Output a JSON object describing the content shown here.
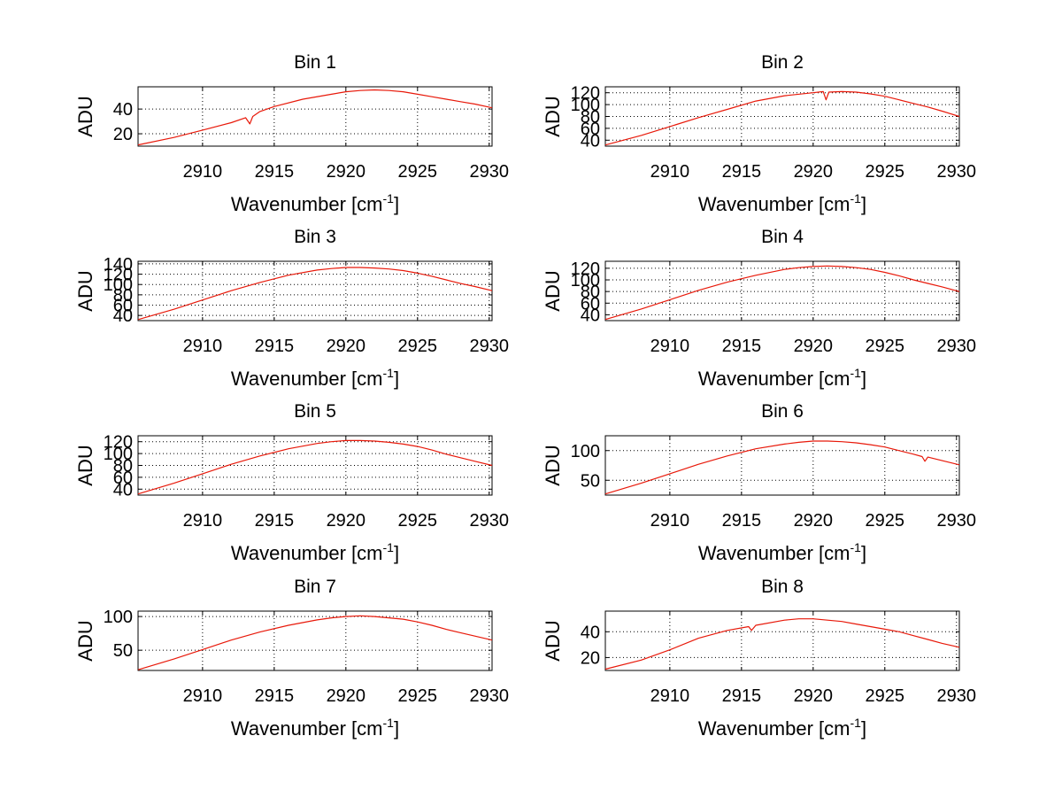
{
  "colors": {
    "line": "#e8190a",
    "grid": "#000000",
    "axes": "#000000",
    "background": "#ffffff"
  },
  "chart_data": [
    {
      "type": "line",
      "title": "Bin 1",
      "xlabel_main": "Wavenumber [cm",
      "xlabel_sup": "-1",
      "xlabel_end": "]",
      "ylabel": "ADU",
      "xlim": [
        2905.5,
        2930.2
      ],
      "ylim": [
        10,
        58
      ],
      "xticks": [
        2910,
        2915,
        2920,
        2925,
        2930
      ],
      "yticks": [
        20,
        40
      ],
      "series": [
        {
          "name": "Bin 1",
          "x": [
            2905.5,
            2908,
            2910,
            2912,
            2913,
            2913.3,
            2913.5,
            2914,
            2915,
            2917,
            2919,
            2920,
            2921,
            2922,
            2923,
            2924,
            2925,
            2926,
            2927,
            2928,
            2929,
            2930.2
          ],
          "y": [
            11,
            17,
            23,
            29,
            33,
            28,
            34,
            38,
            42,
            48,
            52,
            54,
            55,
            55.5,
            55,
            54,
            52,
            50,
            48,
            46,
            44,
            41
          ]
        }
      ]
    },
    {
      "type": "line",
      "title": "Bin 2",
      "xlabel_main": "Wavenumber [cm",
      "xlabel_sup": "-1",
      "xlabel_end": "]",
      "ylabel": "ADU",
      "xlim": [
        2905.5,
        2930.2
      ],
      "ylim": [
        30,
        130
      ],
      "xticks": [
        2910,
        2915,
        2920,
        2925,
        2930
      ],
      "yticks": [
        40,
        60,
        80,
        100,
        120
      ],
      "series": [
        {
          "name": "Bin 2",
          "x": [
            2905.5,
            2908,
            2910,
            2912,
            2914,
            2916,
            2918,
            2920,
            2920.7,
            2920.9,
            2921.1,
            2922,
            2923,
            2924,
            2925,
            2926,
            2927,
            2928,
            2929,
            2930.2
          ],
          "y": [
            32,
            48,
            63,
            78,
            92,
            106,
            115,
            120,
            122,
            108,
            121,
            122,
            121,
            118,
            114,
            108,
            102,
            96,
            89,
            80
          ]
        }
      ]
    },
    {
      "type": "line",
      "title": "Bin 3",
      "xlabel_main": "Wavenumber [cm",
      "xlabel_sup": "-1",
      "xlabel_end": "]",
      "ylabel": "ADU",
      "xlim": [
        2905.5,
        2930.2
      ],
      "ylim": [
        30,
        145
      ],
      "xticks": [
        2910,
        2915,
        2920,
        2925,
        2930
      ],
      "yticks": [
        40,
        60,
        80,
        100,
        120,
        140
      ],
      "series": [
        {
          "name": "Bin 3",
          "x": [
            2905.5,
            2908,
            2910,
            2912,
            2914,
            2916,
            2918,
            2919,
            2920,
            2921,
            2922,
            2923,
            2924,
            2925,
            2926,
            2927,
            2928,
            2929,
            2930.2
          ],
          "y": [
            32,
            52,
            70,
            88,
            104,
            118,
            128,
            131,
            133,
            133,
            132,
            130,
            127,
            122,
            116,
            109,
            102,
            96,
            88
          ]
        }
      ]
    },
    {
      "type": "line",
      "title": "Bin 4",
      "xlabel_main": "Wavenumber [cm",
      "xlabel_sup": "-1",
      "xlabel_end": "]",
      "ylabel": "ADU",
      "xlim": [
        2905.5,
        2930.2
      ],
      "ylim": [
        30,
        132
      ],
      "xticks": [
        2910,
        2915,
        2920,
        2925,
        2930
      ],
      "yticks": [
        40,
        60,
        80,
        100,
        120
      ],
      "series": [
        {
          "name": "Bin 4",
          "x": [
            2905.5,
            2908,
            2910,
            2912,
            2914,
            2916,
            2918,
            2919,
            2920,
            2921,
            2922,
            2923,
            2924,
            2925,
            2926,
            2927,
            2928,
            2929,
            2930.2
          ],
          "y": [
            32,
            50,
            66,
            82,
            96,
            108,
            118,
            121,
            123,
            124,
            123,
            121,
            118,
            113,
            107,
            100,
            94,
            88,
            80
          ]
        }
      ]
    },
    {
      "type": "line",
      "title": "Bin 5",
      "xlabel_main": "Wavenumber [cm",
      "xlabel_sup": "-1",
      "xlabel_end": "]",
      "ylabel": "ADU",
      "xlim": [
        2905.5,
        2930.2
      ],
      "ylim": [
        30,
        130
      ],
      "xticks": [
        2910,
        2915,
        2920,
        2925,
        2930
      ],
      "yticks": [
        40,
        60,
        80,
        100,
        120
      ],
      "series": [
        {
          "name": "Bin 5",
          "x": [
            2905.5,
            2908,
            2910,
            2912,
            2914,
            2916,
            2918,
            2919,
            2920,
            2921,
            2922,
            2923,
            2924,
            2925,
            2926,
            2927,
            2928,
            2929,
            2930.2
          ],
          "y": [
            32,
            50,
            66,
            82,
            96,
            108,
            117,
            120,
            122,
            122,
            121,
            119,
            116,
            112,
            106,
            99,
            93,
            87,
            80
          ]
        }
      ]
    },
    {
      "type": "line",
      "title": "Bin 6",
      "xlabel_main": "Wavenumber [cm",
      "xlabel_sup": "-1",
      "xlabel_end": "]",
      "ylabel": "ADU",
      "xlim": [
        2905.5,
        2930.2
      ],
      "ylim": [
        25,
        125
      ],
      "xticks": [
        2910,
        2915,
        2920,
        2925,
        2930
      ],
      "yticks": [
        50,
        100
      ],
      "series": [
        {
          "name": "Bin 6",
          "x": [
            2905.5,
            2908,
            2910,
            2912,
            2914,
            2916,
            2918,
            2919,
            2920,
            2921,
            2922,
            2923,
            2924,
            2925,
            2926,
            2927,
            2927.6,
            2927.8,
            2928,
            2929,
            2930.2
          ],
          "y": [
            27,
            45,
            61,
            77,
            91,
            103,
            111,
            114,
            116,
            116,
            115,
            113,
            110,
            106,
            100,
            94,
            90,
            82,
            89,
            83,
            76
          ]
        }
      ]
    },
    {
      "type": "line",
      "title": "Bin 7",
      "xlabel_main": "Wavenumber [cm",
      "xlabel_sup": "-1",
      "xlabel_end": "]",
      "ylabel": "ADU",
      "xlim": [
        2905.5,
        2930.2
      ],
      "ylim": [
        20,
        108
      ],
      "xticks": [
        2910,
        2915,
        2920,
        2925,
        2930
      ],
      "yticks": [
        50,
        100
      ],
      "series": [
        {
          "name": "Bin 7",
          "x": [
            2905.5,
            2908,
            2910,
            2912,
            2914,
            2916,
            2918,
            2919,
            2920,
            2921,
            2922,
            2923,
            2924,
            2925,
            2926,
            2927,
            2928,
            2929,
            2930.2
          ],
          "y": [
            21,
            37,
            51,
            65,
            77,
            87,
            95,
            98,
            100,
            101,
            100,
            98,
            96,
            92,
            87,
            81,
            76,
            71,
            65
          ]
        }
      ]
    },
    {
      "type": "line",
      "title": "Bin 8",
      "xlabel_main": "Wavenumber [cm",
      "xlabel_sup": "-1",
      "xlabel_end": "]",
      "ylabel": "ADU",
      "xlim": [
        2905.5,
        2930.2
      ],
      "ylim": [
        10,
        56
      ],
      "xticks": [
        2910,
        2915,
        2920,
        2925,
        2930
      ],
      "yticks": [
        20,
        40
      ],
      "series": [
        {
          "name": "Bin 8",
          "x": [
            2905.5,
            2908,
            2910,
            2912,
            2914,
            2915.5,
            2915.7,
            2916,
            2918,
            2919,
            2920,
            2921,
            2922,
            2923,
            2924,
            2925,
            2926,
            2927,
            2928,
            2929,
            2930.2
          ],
          "y": [
            11,
            18,
            26,
            35,
            41,
            44,
            41,
            45,
            49,
            50,
            50,
            49,
            48,
            46,
            44,
            42,
            40,
            37,
            34,
            31,
            28
          ]
        }
      ]
    }
  ]
}
